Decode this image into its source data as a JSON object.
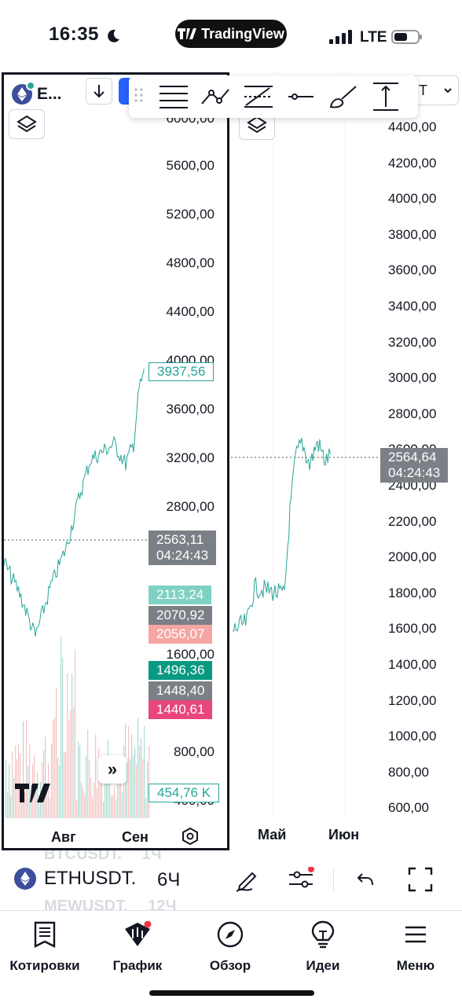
{
  "status_bar": {
    "time": "16:35",
    "carrier": "LTE",
    "brand": "TradingView"
  },
  "left_chart": {
    "symbol_short": "E...",
    "price_axis": [
      "5600,00",
      "5200,00",
      "4800,00",
      "4400,00",
      "4000,00",
      "3600,00",
      "3200,00",
      "2800,00",
      "1600,00",
      "800,00",
      "400,00"
    ],
    "top_partial_label": "6000,00",
    "tags": {
      "current": "3937,56",
      "last_price": "2563,11",
      "countdown": "04:24:43",
      "level_1": "2113,24",
      "level_2": "2070,92",
      "level_3": "2056,07",
      "level_4": "1496,36",
      "level_5": "1448,40",
      "level_6": "1440,61",
      "volume": "454,76 K"
    },
    "time_axis": [
      "Авг",
      "Сен"
    ]
  },
  "right_chart": {
    "symbol_suffix": "T",
    "price_axis": [
      "4400,00",
      "4200,00",
      "4000,00",
      "3800,00",
      "3600,00",
      "3400,00",
      "3200,00",
      "3000,00",
      "2800,00",
      "2600,00",
      "2400,00",
      "2200,00",
      "2000,00",
      "1800,00",
      "1600,00",
      "1400,00",
      "1200,00",
      "1000,00",
      "800,00",
      "600,00"
    ],
    "tags": {
      "last_price": "2564,64",
      "countdown": "04:24:43"
    },
    "time_axis": [
      "Май",
      "Июн"
    ]
  },
  "symbol_bar": {
    "symbol": "ETHUSDT.",
    "interval": "6Ч",
    "ghost_above": {
      "symbol": "BTCUSDT.",
      "interval": "1Ч"
    },
    "ghost_below": {
      "symbol": "MEWUSDT.",
      "interval": "12Ч"
    }
  },
  "nav": {
    "items": [
      {
        "label": "Котировки",
        "icon": "watchlist-icon"
      },
      {
        "label": "График",
        "icon": "chart-icon"
      },
      {
        "label": "Обзор",
        "icon": "compass-icon"
      },
      {
        "label": "Идеи",
        "icon": "lightbulb-icon"
      },
      {
        "label": "Меню",
        "icon": "menu-icon"
      }
    ]
  },
  "colors": {
    "accent": "#2962ff",
    "up": "#26a69a",
    "down": "#ef5350",
    "gray_tag": "#7b7f86",
    "pink": "#e8467c",
    "teal_dark": "#089981"
  }
}
